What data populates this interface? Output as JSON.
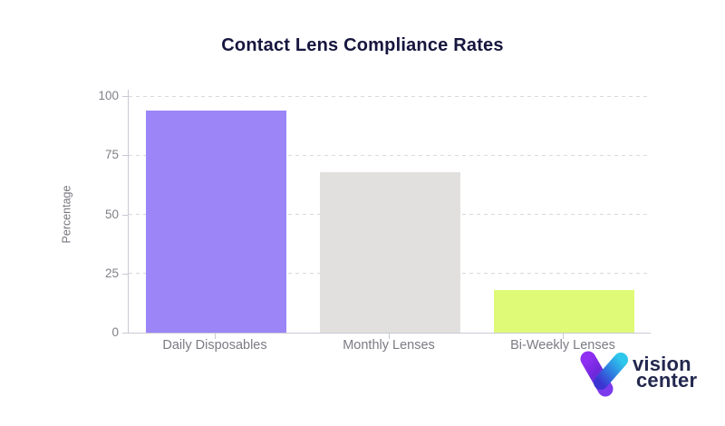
{
  "chart_data": {
    "type": "bar",
    "title": "Contact Lens Compliance Rates",
    "categories": [
      "Daily Disposables",
      "Monthly Lenses",
      "Bi-Weekly Lenses"
    ],
    "values": [
      94,
      68,
      18
    ],
    "unit": "%",
    "xlabel": "",
    "ylabel": "Percentage",
    "ylim": [
      0,
      100
    ],
    "yticks": [
      0,
      25,
      50,
      75,
      100
    ],
    "bar_colors": [
      "#9b85f7",
      "#e1e0de",
      "#dffa76"
    ],
    "grid": "horizontal-dashed",
    "legend_position": "none",
    "background": "#ffffff"
  },
  "branding": {
    "name": "Vision Center",
    "line1": "vision",
    "line2": "center",
    "icon": "v-gradient-logo-icon",
    "text_color": "#23284e",
    "logo_purple": "#8f2ff2",
    "logo_purple_dark": "#6d28d9",
    "logo_cyan": "#2ec7ec",
    "logo_indigo": "#3c35d2"
  },
  "style": {
    "title_color": "#16163f",
    "axis_color": "#c9c9d6",
    "tick_label_color": "#7f7f87",
    "grid_color": "#d9d9df"
  }
}
